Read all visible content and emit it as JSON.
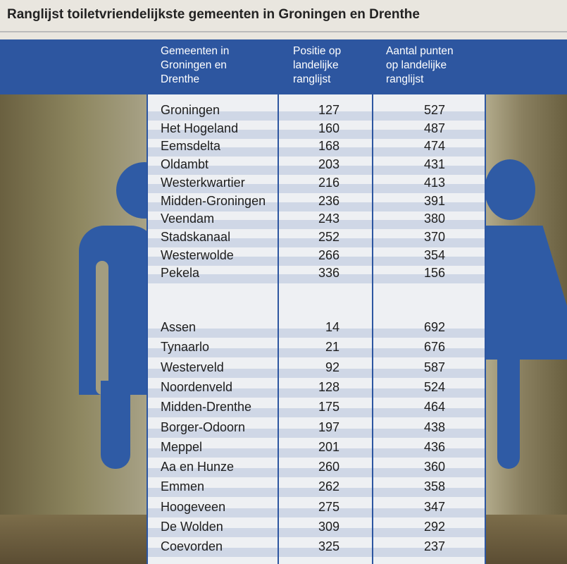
{
  "title": "Ranglijst toiletvriendelijkste gemeenten in Groningen en Drenthe",
  "headers": {
    "col1": "Gemeenten in\nGroningen en\nDrenthe",
    "col2": "Positie op\nlandelijke\nranglijst",
    "col3": "Aantal punten\nop landelijke\nranglijst"
  },
  "groningen": [
    {
      "name": "Groningen",
      "position": "127",
      "points": "527"
    },
    {
      "name": "Het Hogeland",
      "position": "160",
      "points": "487"
    },
    {
      "name": "Eemsdelta",
      "position": "168",
      "points": "474"
    },
    {
      "name": "Oldambt",
      "position": "203",
      "points": "431"
    },
    {
      "name": "Westerkwartier",
      "position": "216",
      "points": "413"
    },
    {
      "name": "Midden-Groningen",
      "position": "236",
      "points": "391"
    },
    {
      "name": "Veendam",
      "position": "243",
      "points": "380"
    },
    {
      "name": "Stadskanaal",
      "position": "252",
      "points": "370"
    },
    {
      "name": "Westerwolde",
      "position": "266",
      "points": "354"
    },
    {
      "name": "Pekela",
      "position": "336",
      "points": "156"
    }
  ],
  "drenthe": [
    {
      "name": "Assen",
      "position": "14",
      "points": "692"
    },
    {
      "name": "Tynaarlo",
      "position": "21",
      "points": "676"
    },
    {
      "name": "Westerveld",
      "position": "92",
      "points": "587"
    },
    {
      "name": "Noordenveld",
      "position": "128",
      "points": "524"
    },
    {
      "name": "Midden-Drenthe",
      "position": "175",
      "points": "464"
    },
    {
      "name": "Borger-Odoorn",
      "position": "197",
      "points": "438"
    },
    {
      "name": "Meppel",
      "position": "201",
      "points": "436"
    },
    {
      "name": "Aa en Hunze",
      "position": "260",
      "points": "360"
    },
    {
      "name": "Emmen",
      "position": "262",
      "points": "358"
    },
    {
      "name": "Hoogeveen",
      "position": "275",
      "points": "347"
    },
    {
      "name": "De Wolden",
      "position": "309",
      "points": "292"
    },
    {
      "name": "Coevorden",
      "position": "325",
      "points": "237"
    }
  ]
}
